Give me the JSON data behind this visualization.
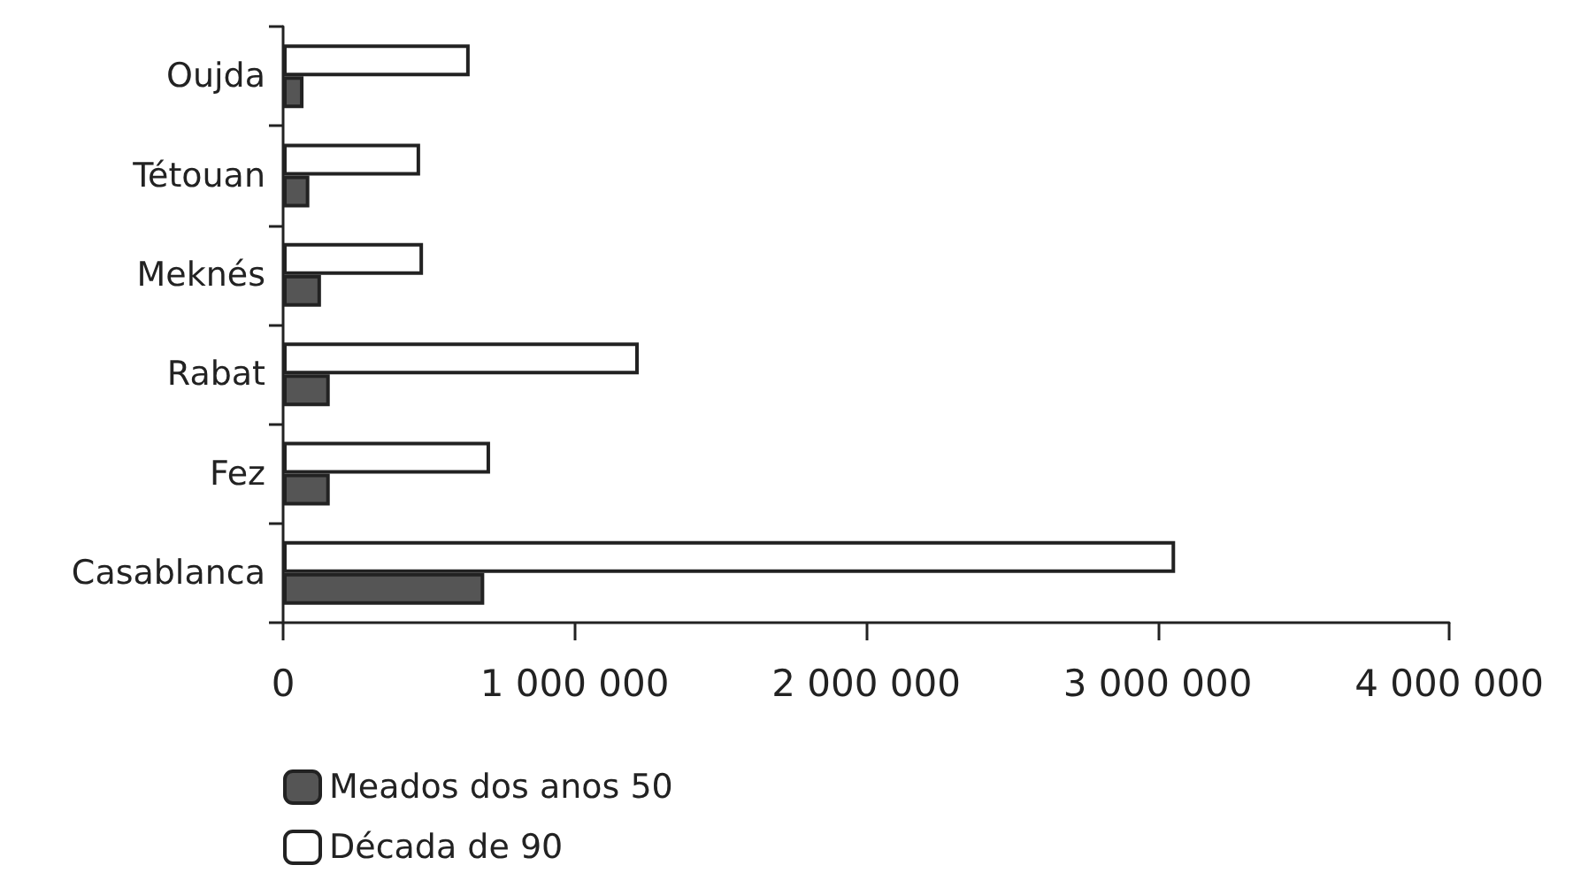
{
  "chart_data": {
    "type": "bar",
    "orientation": "horizontal",
    "categories": [
      "Oujda",
      "Tétouan",
      "Meknés",
      "Rabat",
      "Fez",
      "Casablanca"
    ],
    "series": [
      {
        "name": "Meados dos anos 50",
        "color": "#555555",
        "values": [
          70000,
          90000,
          130000,
          160000,
          160000,
          690000
        ]
      },
      {
        "name": "Década de 90",
        "color": "#ffffff",
        "values": [
          640000,
          470000,
          480000,
          1220000,
          710000,
          3060000
        ]
      }
    ],
    "xlim": [
      0,
      4000000
    ],
    "xticks": [
      {
        "value": 0,
        "label": "0"
      },
      {
        "value": 1000000,
        "label": "1 000 000"
      },
      {
        "value": 2000000,
        "label": "2 000 000"
      },
      {
        "value": 3000000,
        "label": "3 000 000"
      },
      {
        "value": 4000000,
        "label": "4 000 000"
      }
    ],
    "grid": false,
    "legend": "bottom left"
  }
}
